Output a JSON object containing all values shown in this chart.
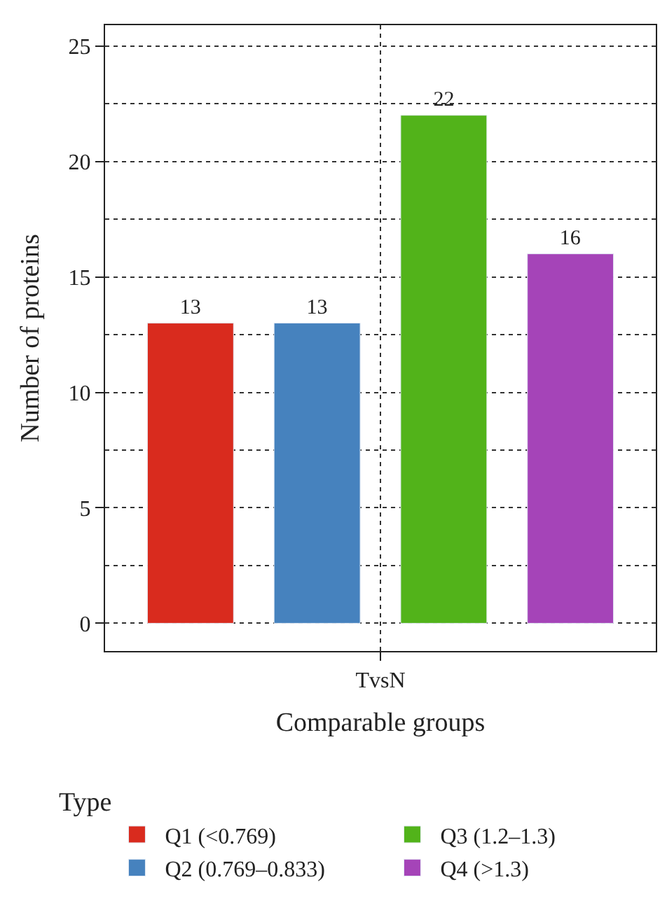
{
  "chart_data": {
    "type": "bar",
    "xlabel": "Comparable groups",
    "ylabel": "Number of proteins",
    "legend_title": "Type",
    "categories": [
      "TvsN"
    ],
    "series": [
      {
        "name": "Q1 (<0.769)",
        "color": "#d92b1e",
        "values": [
          13
        ]
      },
      {
        "name": "Q2 (0.769–0.833)",
        "color": "#4682be",
        "values": [
          13
        ]
      },
      {
        "name": "Q3 (1.2–1.3)",
        "color": "#52b31a",
        "values": [
          22
        ]
      },
      {
        "name": "Q4 (>1.3)",
        "color": "#a544b8",
        "values": [
          16
        ]
      }
    ],
    "ylim": [
      -1.2,
      25.9
    ],
    "yticks": [
      0,
      5,
      10,
      15,
      20,
      25
    ],
    "grid": true,
    "legend": "bottom",
    "data_labels": true
  }
}
